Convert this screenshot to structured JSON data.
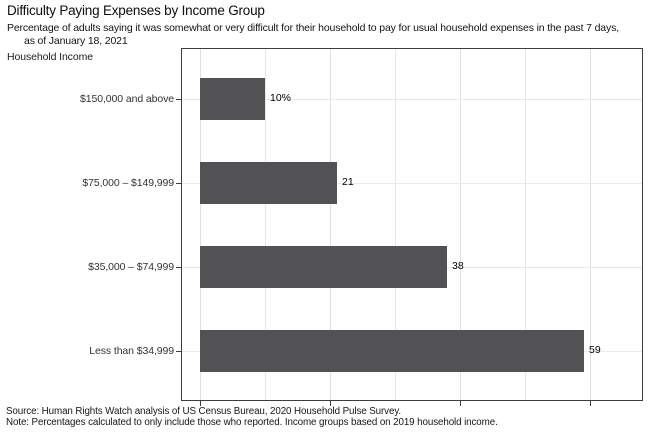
{
  "header": {
    "title": "Difficulty Paying Expenses by Income Group",
    "subtitle_line1": "Percentage of adults saying it was somewhat or very difficult for their household to pay for usual household expenses in the past 7 days,",
    "subtitle_line2": "as of January 18, 2021"
  },
  "axis": {
    "y_title": "Household Income"
  },
  "footer": {
    "source": "Source: Human Rights Watch analysis of US Census Bureau, 2020 Household Pulse Survey.",
    "note": "Note: Percentages calculated to only include those who reported. Income groups based on 2019 household income."
  },
  "chart_data": {
    "type": "bar",
    "orientation": "horizontal",
    "title": "Difficulty Paying Expenses by Income Group",
    "subtitle": "Percentage of adults saying it was somewhat or very difficult for their household to pay for usual household expenses in the past 7 days, as of January 18, 2021",
    "ylabel": "Household Income",
    "xlabel": "",
    "categories": [
      "$150,000 and above",
      "$75,000 – $149,999",
      "$35,000 – $74,999",
      "Less than $34,999"
    ],
    "values": [
      10,
      21,
      38,
      59
    ],
    "value_labels": [
      "10%",
      "21",
      "38",
      "59"
    ],
    "xlim": [
      0,
      68
    ],
    "x_gridlines": [
      0,
      10,
      20,
      30,
      40,
      50,
      60
    ],
    "x_ticks": [
      0,
      20,
      40,
      60
    ],
    "x_tick_labels_shown": false,
    "grid": true,
    "legend_position": "none",
    "colors": {
      "bar": "#525254",
      "grid_minor": "#e7e7e7",
      "grid_major": "#e0e0e0",
      "hgrid": "#eaeaea",
      "axis": "#3d3d3d",
      "category_label": "#333333",
      "value_label": "#000000"
    }
  }
}
